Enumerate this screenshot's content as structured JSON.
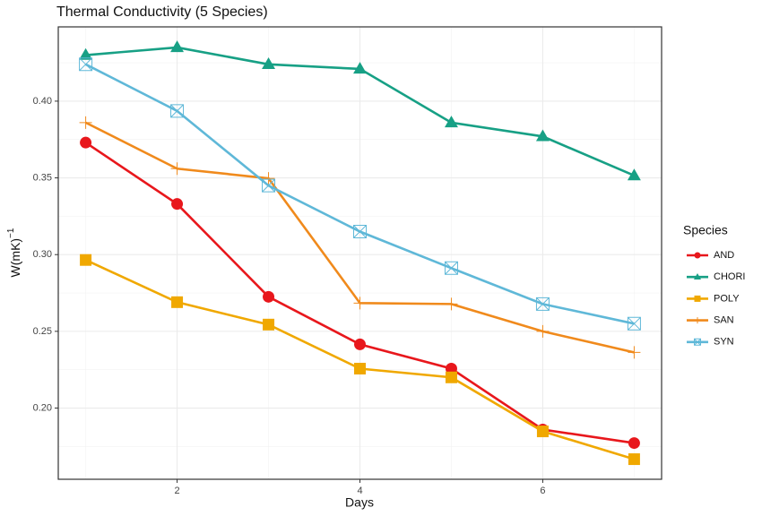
{
  "chart_data": {
    "type": "line",
    "title": "Thermal Conductivity (5 Species)",
    "x_label": "Days",
    "y_label": "W(mK)",
    "y_label_sup": "−1",
    "legend_title": "Species",
    "legend_position": "right",
    "grid": true,
    "minor_grid": true,
    "x": [
      1,
      2,
      3,
      4,
      5,
      6,
      7
    ],
    "xlim": [
      0.7,
      7.3
    ],
    "xticks": [
      2,
      4,
      6
    ],
    "ylim": [
      0.1536,
      0.4484
    ],
    "yticks": [
      {
        "value": 0.2,
        "label": "0.20"
      },
      {
        "value": 0.25,
        "label": "0.25"
      },
      {
        "value": 0.3,
        "label": "0.30"
      },
      {
        "value": 0.35,
        "label": "0.35"
      },
      {
        "value": 0.4,
        "label": "0.40"
      }
    ],
    "series": [
      {
        "name": "AND",
        "color": "#e8171c",
        "shape": "circle",
        "values": [
          0.373,
          0.333,
          0.2725,
          0.2415,
          0.2257,
          0.186,
          0.1772
        ]
      },
      {
        "name": "CHORI",
        "color": "#17a085",
        "shape": "triangle",
        "values": [
          0.43,
          0.435,
          0.424,
          0.421,
          0.386,
          0.377,
          0.3515
        ]
      },
      {
        "name": "POLY",
        "color": "#f0a800",
        "shape": "square",
        "values": [
          0.2965,
          0.269,
          0.2544,
          0.2257,
          0.22,
          0.1848,
          0.1667
        ]
      },
      {
        "name": "SAN",
        "color": "#f08a1c",
        "shape": "plus",
        "values": [
          0.386,
          0.356,
          0.3497,
          0.2684,
          0.2678,
          0.25,
          0.2363
        ]
      },
      {
        "name": "SYN",
        "color": "#5fb8d8",
        "shape": "boxx",
        "values": [
          0.424,
          0.3936,
          0.345,
          0.315,
          0.2912,
          0.2678,
          0.255
        ]
      }
    ]
  }
}
